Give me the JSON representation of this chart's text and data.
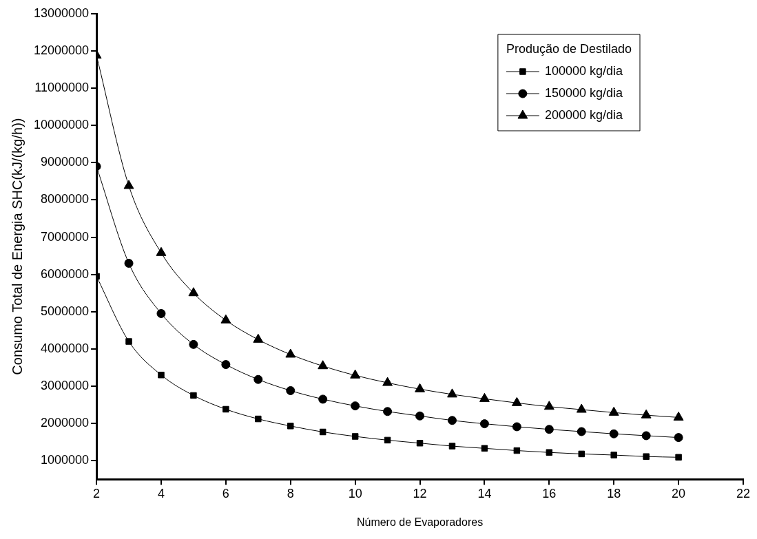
{
  "chart_data": {
    "type": "line",
    "xlabel": "Número de Evaporadores",
    "ylabel": "Consumo Total de Energia SHC(kJ/(kg/h))",
    "legend_title": "Produção de Destilado",
    "x": [
      2,
      3,
      4,
      5,
      6,
      7,
      8,
      9,
      10,
      11,
      12,
      13,
      14,
      15,
      16,
      17,
      18,
      19,
      20
    ],
    "series": [
      {
        "name": "100000 kg/dia",
        "color": "#000000",
        "marker": "square",
        "values": [
          5950000,
          4200000,
          3300000,
          2750000,
          2380000,
          2120000,
          1930000,
          1770000,
          1650000,
          1550000,
          1470000,
          1390000,
          1330000,
          1270000,
          1220000,
          1180000,
          1150000,
          1110000,
          1090000
        ]
      },
      {
        "name": "150000 kg/dia",
        "color": "#000000",
        "marker": "circle",
        "values": [
          8900000,
          6300000,
          4950000,
          4120000,
          3580000,
          3180000,
          2880000,
          2650000,
          2470000,
          2320000,
          2200000,
          2080000,
          1990000,
          1910000,
          1840000,
          1780000,
          1720000,
          1670000,
          1620000
        ]
      },
      {
        "name": "200000 kg/dia",
        "color": "#000000",
        "marker": "triangle",
        "values": [
          11880000,
          8380000,
          6580000,
          5500000,
          4770000,
          4250000,
          3850000,
          3540000,
          3290000,
          3090000,
          2920000,
          2780000,
          2660000,
          2550000,
          2450000,
          2370000,
          2290000,
          2220000,
          2160000
        ]
      }
    ],
    "xlim": [
      2,
      22
    ],
    "xticks": [
      2,
      4,
      6,
      8,
      10,
      12,
      14,
      16,
      18,
      20,
      22
    ],
    "ylim": [
      500000,
      13000000
    ],
    "yticks": [
      1000000,
      2000000,
      3000000,
      4000000,
      5000000,
      6000000,
      7000000,
      8000000,
      9000000,
      10000000,
      11000000,
      12000000,
      13000000
    ],
    "legend": "top right",
    "grid": false,
    "line_style": "solid"
  }
}
